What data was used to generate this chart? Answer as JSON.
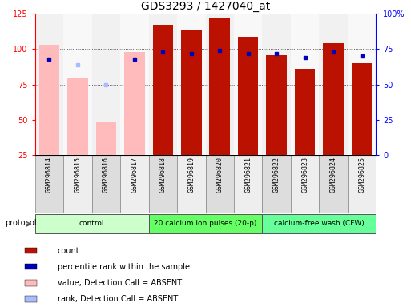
{
  "title": "GDS3293 / 1427040_at",
  "samples": [
    "GSM296814",
    "GSM296815",
    "GSM296816",
    "GSM296817",
    "GSM296818",
    "GSM296819",
    "GSM296820",
    "GSM296821",
    "GSM296822",
    "GSM296823",
    "GSM296824",
    "GSM296825"
  ],
  "bar_values": [
    103,
    80,
    49,
    98,
    117,
    113,
    122,
    109,
    96,
    86,
    104,
    90
  ],
  "bar_absent": [
    true,
    true,
    true,
    true,
    false,
    false,
    false,
    false,
    false,
    false,
    false,
    false
  ],
  "dot_pct": [
    68,
    64,
    50,
    68,
    73,
    72,
    74,
    72,
    72,
    69,
    73,
    70
  ],
  "dot_absent": [
    false,
    true,
    true,
    false,
    false,
    false,
    false,
    false,
    false,
    false,
    false,
    false
  ],
  "protocols": [
    {
      "label": "control",
      "start": 0,
      "end": 4,
      "color": "#ccffcc"
    },
    {
      "label": "20 calcium ion pulses (20-p)",
      "start": 4,
      "end": 8,
      "color": "#66ff66"
    },
    {
      "label": "calcium-free wash (CFW)",
      "start": 8,
      "end": 12,
      "color": "#66ff99"
    }
  ],
  "ylim_left": [
    25,
    125
  ],
  "ylim_right": [
    0,
    100
  ],
  "left_ticks": [
    25,
    50,
    75,
    100,
    125
  ],
  "right_ticks": [
    0,
    25,
    50,
    75,
    100
  ],
  "right_tick_labels": [
    "0",
    "25",
    "50",
    "75",
    "100%"
  ],
  "bar_color_present": "#bb1100",
  "bar_color_absent": "#ffbbbb",
  "dot_color_present": "#0000bb",
  "dot_color_absent": "#aabbff",
  "bg_color": "#ffffff",
  "plot_bg": "#ffffff",
  "grid_color": "#333333",
  "col_bg_odd": "#dddddd",
  "col_bg_even": "#eeeeee",
  "title_fontsize": 10,
  "tick_fontsize": 7,
  "sample_fontsize": 6,
  "legend_labels": [
    "count",
    "percentile rank within the sample",
    "value, Detection Call = ABSENT",
    "rank, Detection Call = ABSENT"
  ],
  "legend_colors": [
    "#bb1100",
    "#0000bb",
    "#ffbbbb",
    "#aabbff"
  ]
}
